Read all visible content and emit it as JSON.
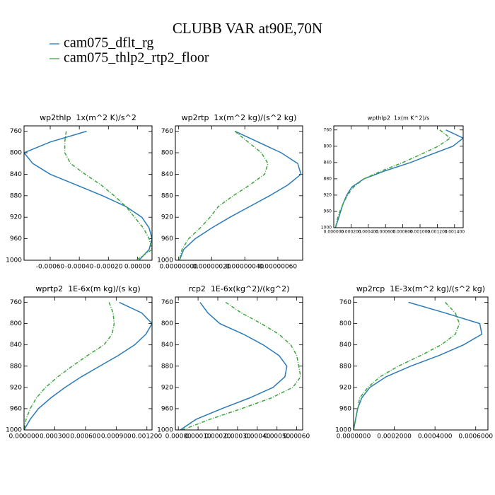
{
  "title": "CLUBB VAR at90E,70N",
  "legend": [
    {
      "name": "cam075_dflt_rg",
      "color": "#2b7bb9"
    },
    {
      "name": "cam075_thlp2_rtp2_floor",
      "color": "#3ca63c"
    }
  ],
  "chart_data": [
    {
      "type": "line",
      "title": "wp2thlp  1x(m^2 K)/s^2",
      "y": [
        760,
        780,
        800,
        820,
        840,
        860,
        880,
        900,
        920,
        940,
        960,
        980,
        1000
      ],
      "series": [
        {
          "values": [
            -0.00035,
            -0.0006,
            -0.00078,
            -0.00072,
            -0.0006,
            -0.00042,
            -0.00024,
            -8e-05,
            3e-05,
            8e-05,
            0.0001,
            8e-05,
            1e-05
          ]
        },
        {
          "values": [
            -0.00049,
            -0.0005,
            -0.0005,
            -0.00046,
            -0.00036,
            -0.00025,
            -0.00016,
            -8e-05,
            -2e-05,
            4e-05,
            8e-05,
            0.0001,
            -1e-05
          ]
        }
      ],
      "xlim": [
        -0.00078,
        0.0001
      ],
      "xticks": [
        {
          "value": -0.0006,
          "label": "-0.00060"
        },
        {
          "value": -0.0004,
          "label": "-0.00040"
        },
        {
          "value": -0.0002,
          "label": "-0.00020"
        },
        {
          "value": 0,
          "label": "0.00000"
        }
      ],
      "ylim": [
        1000,
        750
      ],
      "yticks": [
        760,
        800,
        840,
        880,
        920,
        960,
        1000
      ]
    },
    {
      "type": "line",
      "title": "wp2rtp  1x(m^2 kg)/(s^2 kg)",
      "y": [
        760,
        780,
        800,
        820,
        840,
        860,
        880,
        900,
        920,
        940,
        960,
        980,
        1000
      ],
      "series": [
        {
          "values": [
            3.4e-07,
            4.8e-07,
            6.2e-07,
            7.2e-07,
            7.4e-07,
            6.6e-07,
            5.5e-07,
            4.3e-07,
            3.1e-07,
            2e-07,
            1e-07,
            3e-08,
            5e-09
          ]
        },
        {
          "values": [
            3.4e-07,
            4.2e-07,
            5e-07,
            5.4e-07,
            5.2e-07,
            4.3e-07,
            3.3e-07,
            2.4e-07,
            1.9e-07,
            1.3e-07,
            6e-08,
            2e-08,
            5e-09
          ]
        }
      ],
      "xlim": [
        -2e-08,
        7.5e-07
      ],
      "xticks": [
        {
          "value": 0,
          "label": "0.00000000"
        },
        {
          "value": 2e-07,
          "label": "0.00000020"
        },
        {
          "value": 4e-07,
          "label": "0.00000040"
        },
        {
          "value": 6e-07,
          "label": "0.00000060"
        }
      ],
      "ylim": [
        1000,
        750
      ],
      "yticks": [
        760,
        800,
        840,
        880,
        920,
        960,
        1000
      ]
    },
    {
      "type": "line",
      "title": "wpthlp2  1x(m K^2)/s",
      "y": [
        760,
        780,
        800,
        820,
        840,
        860,
        880,
        900,
        920,
        940,
        960,
        980,
        1000
      ],
      "series": [
        {
          "values": [
            0.0013,
            0.0015,
            0.00138,
            0.00113,
            0.00089,
            0.0006,
            0.00035,
            0.00021,
            0.00015,
            0.00011,
            8e-05,
            5e-05,
            2e-05
          ]
        },
        {
          "values": [
            0.00123,
            0.00135,
            0.00121,
            0.00101,
            0.0008,
            0.00056,
            0.00035,
            0.00023,
            0.00016,
            0.00011,
            7e-05,
            4e-05,
            2e-05
          ]
        }
      ],
      "xlim": [
        0,
        0.0015
      ],
      "xticks": [
        {
          "value": 0,
          "label": "0.000000"
        },
        {
          "value": 0.0002,
          "label": "0.000200"
        },
        {
          "value": 0.0004,
          "label": "0.000400"
        },
        {
          "value": 0.0006,
          "label": "0.000600"
        },
        {
          "value": 0.0008,
          "label": "0.000800"
        },
        {
          "value": 0.001,
          "label": "0.001000"
        },
        {
          "value": 0.0012,
          "label": "0.001200"
        },
        {
          "value": 0.0014,
          "label": "0.001400"
        }
      ],
      "ylim": [
        1000,
        750
      ],
      "yticks": [
        760,
        800,
        840,
        880,
        920,
        960,
        1000
      ]
    },
    {
      "type": "line",
      "title": "wprtp2  1E-6x(m kg)/(s kg)",
      "y": [
        760,
        780,
        800,
        820,
        840,
        860,
        880,
        900,
        920,
        940,
        960,
        980,
        1000
      ],
      "series": [
        {
          "values": [
            0.00093,
            0.00115,
            0.00125,
            0.00119,
            0.00108,
            0.00092,
            0.00074,
            0.00056,
            0.0004,
            0.00026,
            0.00014,
            6e-05,
            0
          ]
        },
        {
          "values": [
            0.00083,
            0.00087,
            0.00088,
            0.00086,
            0.00078,
            0.00062,
            0.00047,
            0.00033,
            0.00021,
            0.00012,
            6e-05,
            2e-05,
            0
          ]
        }
      ],
      "xlim": [
        0,
        0.00125
      ],
      "xticks": [
        {
          "value": 0,
          "label": "0.000000"
        },
        {
          "value": 0.0003,
          "label": "0.000300"
        },
        {
          "value": 0.0006,
          "label": "0.000600"
        },
        {
          "value": 0.0009,
          "label": "0.000900"
        },
        {
          "value": 0.0012,
          "label": "0.001200"
        }
      ],
      "ylim": [
        1000,
        750
      ],
      "yticks": [
        760,
        800,
        840,
        880,
        920,
        960,
        1000
      ]
    },
    {
      "type": "line",
      "title": "rcp2  1E-6x(kg^2)/(kg^2)",
      "y": [
        760,
        780,
        800,
        820,
        840,
        860,
        880,
        900,
        920,
        940,
        960,
        980,
        1000
      ],
      "series": [
        {
          "values": [
            0.00011,
            0.00015,
            0.00021,
            0.00033,
            0.00043,
            0.00051,
            0.00055,
            0.00054,
            0.00048,
            0.00036,
            0.00022,
            9e-05,
            1e-05
          ]
        },
        {
          "values": [
            0.00024,
            0.00032,
            0.00042,
            0.00051,
            0.00057,
            0.0006,
            0.00061,
            0.00062,
            0.00058,
            0.00047,
            0.00032,
            0.00016,
            2e-05
          ]
        }
      ],
      "xlim": [
        -1.5e-05,
        0.00063
      ],
      "xticks": [
        {
          "value": 0,
          "label": "0.00000"
        },
        {
          "value": 0.0001,
          "label": "0.00010"
        },
        {
          "value": 0.0002,
          "label": "0.00020"
        },
        {
          "value": 0.0003,
          "label": "0.00030"
        },
        {
          "value": 0.0004,
          "label": "0.00040"
        },
        {
          "value": 0.0005,
          "label": "0.00050"
        },
        {
          "value": 0.0006,
          "label": "0.00060"
        }
      ],
      "ylim": [
        1000,
        750
      ],
      "yticks": [
        760,
        800,
        840,
        880,
        920,
        960,
        1000
      ]
    },
    {
      "type": "line",
      "title": "wp2rcp  1E-3x(m^2 kg)/(s^2 kg)",
      "y": [
        760,
        780,
        800,
        820,
        840,
        860,
        880,
        900,
        920,
        940,
        960,
        980,
        1000
      ],
      "series": [
        {
          "values": [
            0.00027,
            0.00045,
            0.00062,
            0.00063,
            0.00054,
            0.00042,
            0.00028,
            0.00016,
            8e-05,
            4e-05,
            2e-05,
            1e-05,
            0
          ]
        },
        {
          "values": [
            0.00045,
            0.0005,
            0.00052,
            0.0005,
            0.00043,
            0.00033,
            0.00022,
            0.00013,
            7e-05,
            3e-05,
            2e-05,
            1e-05,
            0
          ]
        }
      ],
      "xlim": [
        0,
        0.00066
      ],
      "xticks": [
        {
          "value": 0,
          "label": "0.0000000"
        },
        {
          "value": 0.0002,
          "label": "0.0002000"
        },
        {
          "value": 0.0004,
          "label": "0.0004000"
        },
        {
          "value": 0.0006,
          "label": "0.0006000"
        }
      ],
      "ylim": [
        1000,
        750
      ],
      "yticks": [
        760,
        800,
        840,
        880,
        920,
        960,
        1000
      ]
    }
  ]
}
